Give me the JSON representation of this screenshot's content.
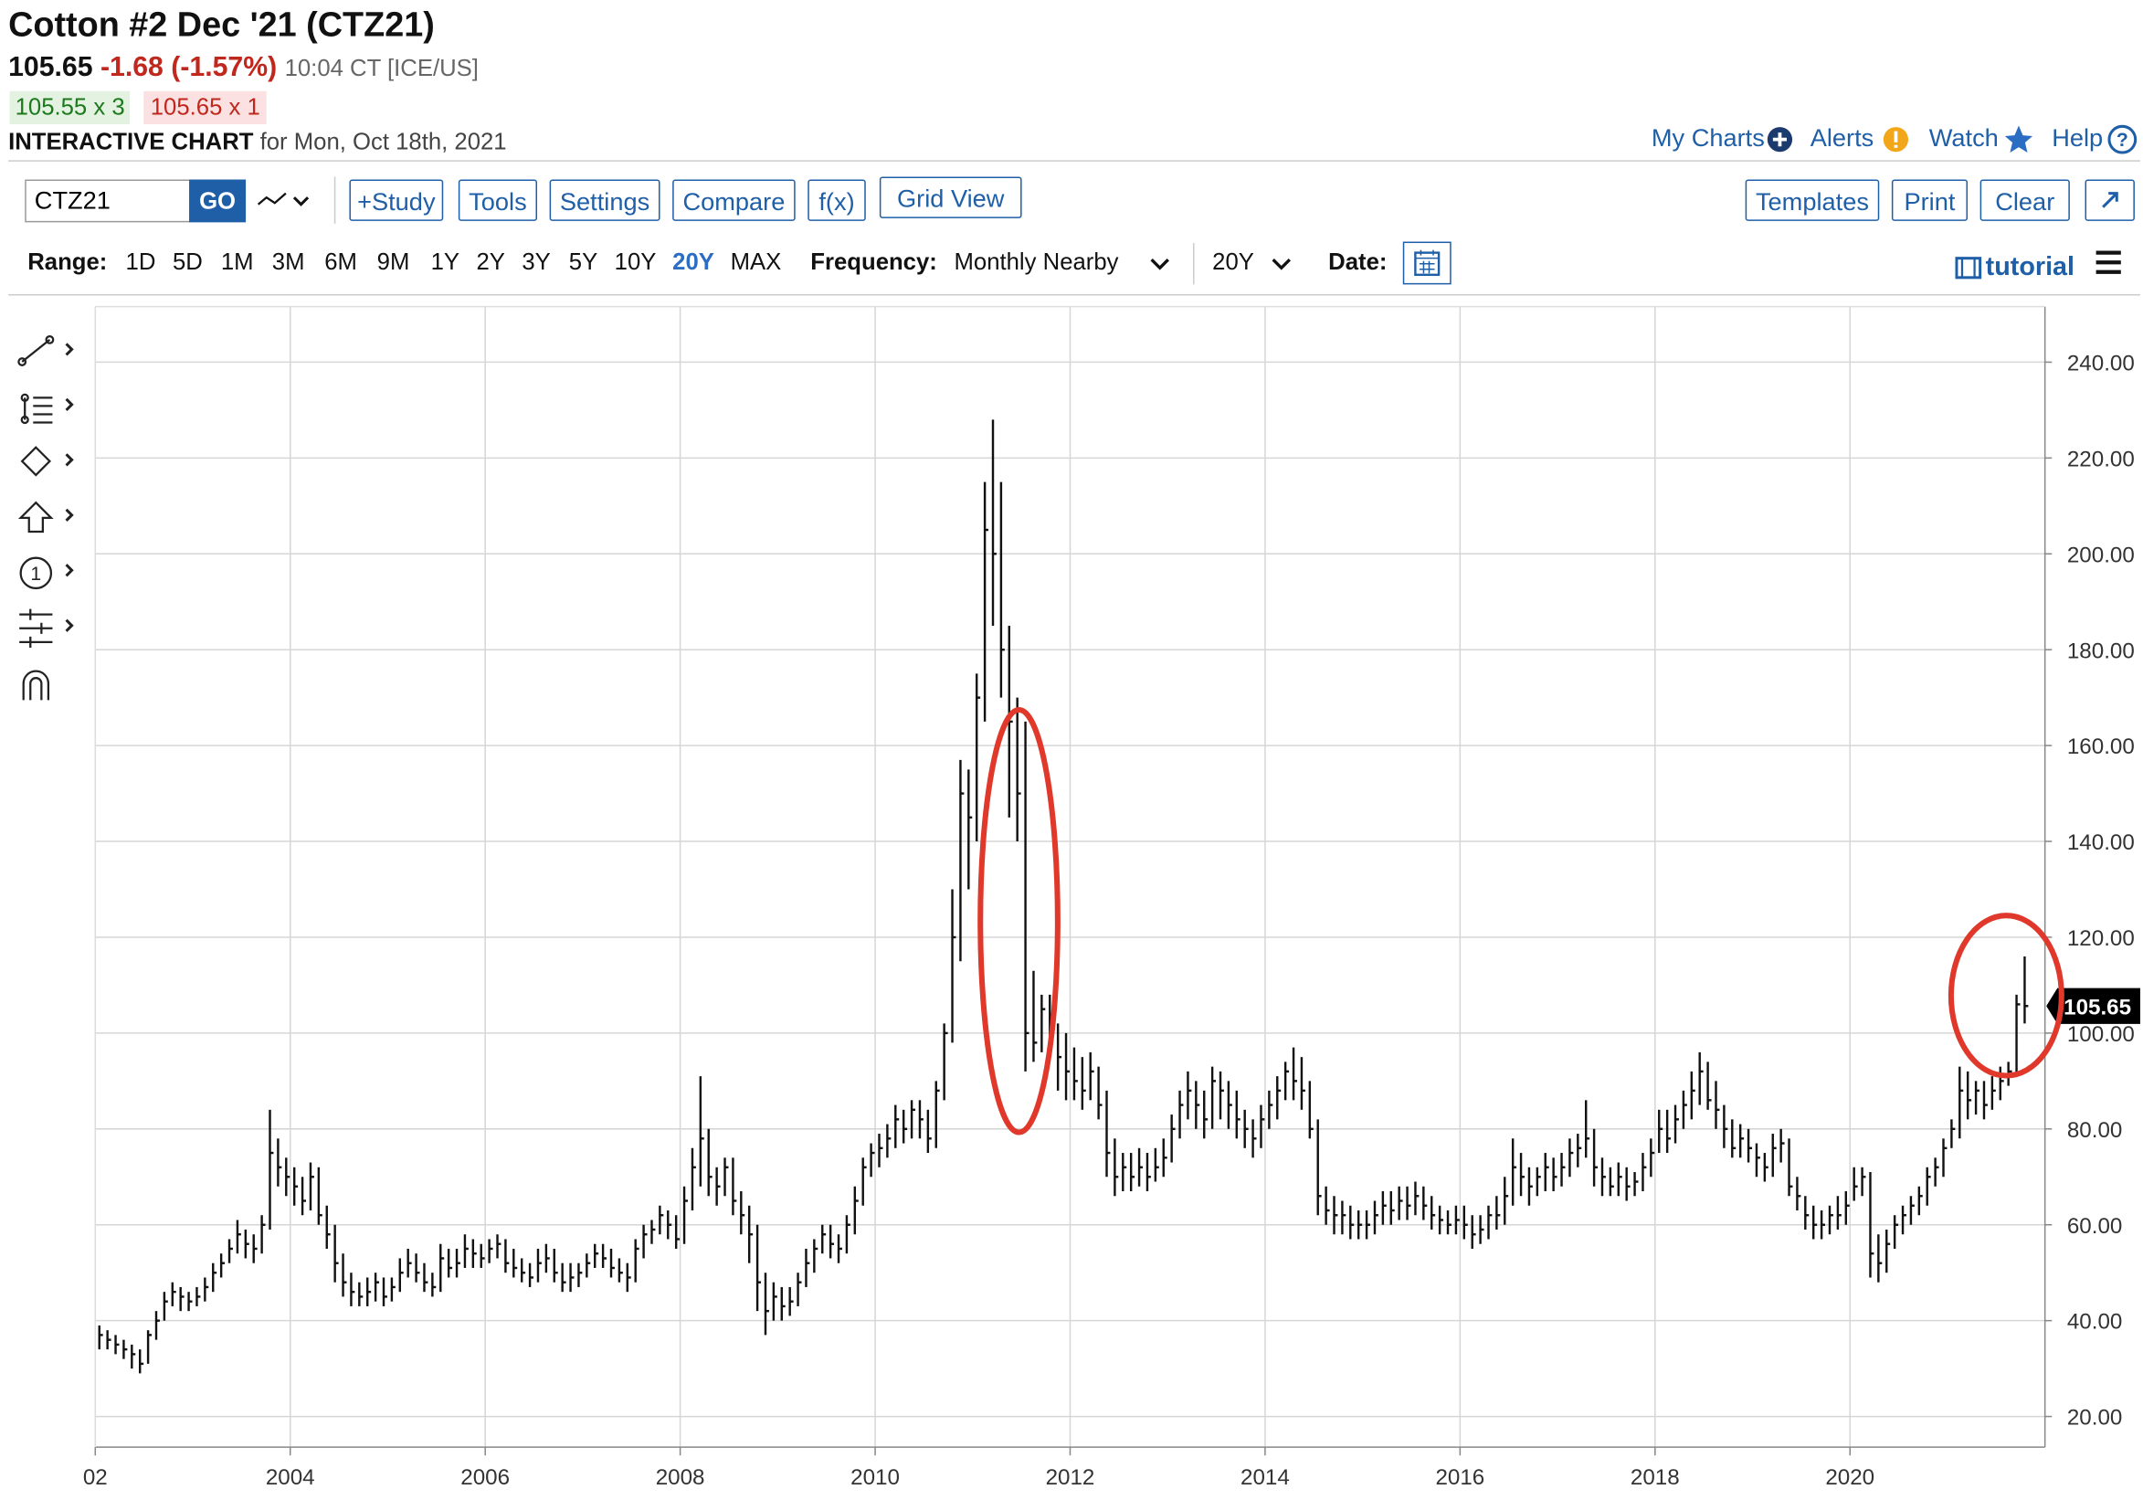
{
  "header": {
    "title": "Cotton #2 Dec '21 (CTZ21)",
    "price": "105.65",
    "change": "-1.68 (-1.57%)",
    "time": "10:04 CT [ICE/US]",
    "bid": "105.55 x 3",
    "ask": "105.65 x 1",
    "chart_label": "INTERACTIVE CHART",
    "chart_date": "for Mon, Oct 18th, 2021"
  },
  "nav": [
    "My Charts",
    "Alerts",
    "Watch",
    "Help"
  ],
  "toolbar": {
    "symbol": "CTZ21",
    "go": "GO",
    "buttons": [
      "+Study",
      "Tools",
      "Settings",
      "Compare",
      "f(x)",
      "Grid View"
    ],
    "right_buttons": [
      "Templates",
      "Print",
      "Clear"
    ]
  },
  "range": {
    "label": "Range:",
    "items": [
      "1D",
      "5D",
      "1M",
      "3M",
      "6M",
      "9M",
      "1Y",
      "2Y",
      "3Y",
      "5Y",
      "10Y",
      "20Y",
      "MAX"
    ],
    "active": "20Y",
    "frequency_label": "Frequency:",
    "frequency": "Monthly Nearby",
    "period": "20Y",
    "date_label": "Date:",
    "tutorial": "tutorial"
  },
  "chart_data": {
    "type": "ohlc",
    "color": "#111111",
    "grid": true,
    "xlim": [
      2002,
      2022
    ],
    "xticks": [
      {
        "value": 2002,
        "label": "02"
      },
      2004,
      2006,
      2008,
      2010,
      2012,
      2014,
      2016,
      2018,
      2020
    ],
    "ylim": [
      13.6,
      251.6
    ],
    "yticks": [
      {
        "value": 20,
        "label": "20.00"
      },
      {
        "value": 40,
        "label": "40.00"
      },
      {
        "value": 60,
        "label": "60.00"
      },
      {
        "value": 80,
        "label": "80.00"
      },
      {
        "value": 100,
        "label": "100.00"
      },
      {
        "value": 120,
        "label": "120.00"
      },
      {
        "value": 140,
        "label": "140.00"
      },
      {
        "value": 160,
        "label": "160.00"
      },
      {
        "value": 180,
        "label": "180.00"
      },
      {
        "value": 200,
        "label": "200.00"
      },
      {
        "value": 220,
        "label": "220.00"
      },
      {
        "value": 240,
        "label": "240.00"
      }
    ],
    "last_price": 105.65,
    "high": [
      39,
      38,
      37,
      36,
      35,
      34,
      38,
      42,
      46,
      48,
      47,
      46,
      47,
      49,
      52,
      54,
      57,
      61,
      59,
      58,
      62,
      84,
      78,
      74,
      72,
      70,
      73,
      72,
      64,
      60,
      54,
      50,
      48,
      49,
      50,
      49,
      49,
      53,
      55,
      54,
      52,
      50,
      56,
      55,
      55,
      58,
      57,
      56,
      57,
      58,
      57,
      55,
      53,
      52,
      55,
      56,
      55,
      52,
      52,
      52,
      54,
      56,
      56,
      55,
      53,
      52,
      57,
      60,
      61,
      64,
      63,
      62,
      68,
      76,
      91,
      80,
      72,
      74,
      74,
      67,
      64,
      60,
      50,
      48,
      47,
      47,
      50,
      55,
      57,
      60,
      60,
      58,
      62,
      68,
      74,
      77,
      79,
      81,
      85,
      84,
      86,
      86,
      84,
      90,
      102,
      130,
      157,
      155,
      175,
      215,
      228,
      215,
      185,
      170,
      165,
      113,
      108,
      108,
      102,
      100,
      97,
      95,
      96,
      93,
      88,
      78,
      75,
      75,
      76,
      75,
      76,
      78,
      83,
      88,
      92,
      90,
      88,
      93,
      92,
      90,
      88,
      84,
      82,
      85,
      88,
      91,
      94,
      97,
      95,
      90,
      82,
      68,
      66,
      65,
      64,
      63,
      63,
      65,
      67,
      67,
      68,
      68,
      69,
      68,
      66,
      64,
      63,
      64,
      64,
      62,
      62,
      64,
      66,
      70,
      78,
      75,
      72,
      72,
      75,
      74,
      75,
      78,
      79,
      86,
      80,
      74,
      72,
      73,
      72,
      71,
      75,
      78,
      84,
      84,
      85,
      88,
      92,
      96,
      94,
      90,
      85,
      82,
      81,
      80,
      77,
      75,
      79,
      80,
      78,
      70,
      66,
      64,
      63,
      64,
      66,
      67,
      72,
      72,
      71,
      58,
      59,
      62,
      64,
      66,
      68,
      72,
      74,
      78,
      82,
      93,
      92,
      90,
      90,
      91,
      93,
      94,
      108,
      116
    ],
    "low": [
      34,
      34,
      33,
      32,
      30,
      29,
      31,
      36,
      40,
      43,
      42,
      42,
      43,
      44,
      46,
      49,
      52,
      54,
      53,
      52,
      54,
      59,
      68,
      66,
      64,
      62,
      63,
      60,
      55,
      48,
      45,
      43,
      43,
      43,
      44,
      43,
      44,
      46,
      49,
      48,
      46,
      45,
      46,
      49,
      49,
      51,
      51,
      51,
      52,
      53,
      50,
      49,
      48,
      47,
      48,
      50,
      48,
      46,
      46,
      47,
      49,
      51,
      51,
      49,
      48,
      46,
      48,
      53,
      56,
      58,
      57,
      55,
      56,
      63,
      68,
      66,
      64,
      66,
      62,
      58,
      52,
      42,
      37,
      40,
      40,
      41,
      43,
      47,
      50,
      54,
      53,
      52,
      54,
      58,
      64,
      70,
      72,
      74,
      76,
      77,
      78,
      78,
      75,
      76,
      86,
      98,
      115,
      130,
      140,
      165,
      185,
      170,
      145,
      140,
      92,
      94,
      96,
      95,
      88,
      86,
      86,
      84,
      86,
      82,
      70,
      66,
      67,
      67,
      68,
      67,
      69,
      70,
      73,
      78,
      82,
      80,
      78,
      80,
      82,
      80,
      78,
      76,
      74,
      76,
      80,
      82,
      86,
      86,
      84,
      78,
      62,
      60,
      58,
      58,
      57,
      57,
      57,
      58,
      60,
      60,
      61,
      61,
      62,
      61,
      59,
      58,
      58,
      58,
      57,
      55,
      56,
      57,
      59,
      60,
      64,
      66,
      64,
      66,
      67,
      67,
      68,
      70,
      72,
      74,
      68,
      66,
      66,
      66,
      65,
      66,
      67,
      70,
      75,
      75,
      77,
      80,
      82,
      85,
      84,
      80,
      76,
      74,
      74,
      73,
      70,
      69,
      70,
      73,
      66,
      63,
      59,
      57,
      57,
      58,
      59,
      60,
      65,
      66,
      49,
      48,
      50,
      55,
      58,
      60,
      62,
      64,
      68,
      70,
      76,
      78,
      82,
      83,
      82,
      84,
      86,
      89,
      91,
      102
    ],
    "close": [
      37,
      36,
      35,
      34,
      33,
      31,
      37,
      40,
      44,
      46,
      45,
      44,
      45,
      47,
      50,
      52,
      55,
      58,
      56,
      55,
      60,
      75,
      72,
      70,
      68,
      65,
      70,
      62,
      58,
      52,
      48,
      46,
      45,
      46,
      48,
      45,
      47,
      50,
      52,
      50,
      48,
      47,
      53,
      51,
      52,
      55,
      54,
      53,
      55,
      56,
      52,
      51,
      50,
      49,
      52,
      53,
      50,
      48,
      49,
      50,
      52,
      54,
      53,
      51,
      50,
      49,
      55,
      58,
      59,
      62,
      60,
      57,
      65,
      72,
      78,
      70,
      68,
      72,
      65,
      62,
      58,
      48,
      42,
      45,
      43,
      44,
      48,
      52,
      55,
      58,
      56,
      55,
      60,
      65,
      72,
      75,
      76,
      78,
      82,
      80,
      84,
      82,
      78,
      88,
      100,
      120,
      150,
      145,
      170,
      205,
      200,
      180,
      165,
      150,
      100,
      98,
      105,
      100,
      95,
      92,
      90,
      88,
      92,
      85,
      75,
      70,
      72,
      70,
      72,
      70,
      72,
      74,
      80,
      85,
      88,
      85,
      82,
      90,
      88,
      85,
      82,
      80,
      78,
      82,
      85,
      88,
      92,
      90,
      88,
      80,
      66,
      63,
      62,
      62,
      60,
      60,
      60,
      62,
      64,
      63,
      65,
      64,
      66,
      64,
      62,
      61,
      60,
      61,
      60,
      58,
      59,
      62,
      62,
      66,
      72,
      70,
      68,
      70,
      72,
      70,
      72,
      75,
      76,
      78,
      72,
      70,
      68,
      70,
      68,
      69,
      72,
      75,
      80,
      78,
      82,
      85,
      88,
      92,
      86,
      84,
      80,
      76,
      78,
      76,
      74,
      72,
      76,
      77,
      68,
      66,
      62,
      60,
      60,
      62,
      62,
      64,
      68,
      70,
      54,
      52,
      56,
      60,
      62,
      64,
      66,
      70,
      72,
      76,
      80,
      88,
      86,
      88,
      85,
      88,
      90,
      92,
      106,
      105.65
    ]
  }
}
